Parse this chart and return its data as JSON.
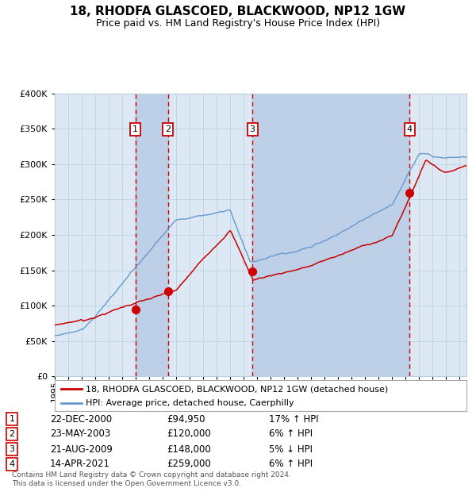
{
  "title": "18, RHODFA GLASCOED, BLACKWOOD, NP12 1GW",
  "subtitle": "Price paid vs. HM Land Registry's House Price Index (HPI)",
  "footer_line1": "Contains HM Land Registry data © Crown copyright and database right 2024.",
  "footer_line2": "This data is licensed under the Open Government Licence v3.0.",
  "legend_red": "18, RHODFA GLASCOED, BLACKWOOD, NP12 1GW (detached house)",
  "legend_blue": "HPI: Average price, detached house, Caerphilly",
  "transactions": [
    {
      "num": 1,
      "date": "22-DEC-2000",
      "price": 94950,
      "pct": "17%",
      "dir": "↑",
      "x_year": 2000.97
    },
    {
      "num": 2,
      "date": "23-MAY-2003",
      "price": 120000,
      "pct": "6%",
      "dir": "↑",
      "x_year": 2003.39
    },
    {
      "num": 3,
      "date": "21-AUG-2009",
      "price": 148000,
      "pct": "5%",
      "dir": "↓",
      "x_year": 2009.64
    },
    {
      "num": 4,
      "date": "14-APR-2021",
      "price": 259000,
      "pct": "6%",
      "dir": "↑",
      "x_year": 2021.29
    }
  ],
  "ylim": [
    0,
    400000
  ],
  "yticks": [
    0,
    50000,
    100000,
    150000,
    200000,
    250000,
    300000,
    350000,
    400000
  ],
  "xlim_start": 1995.0,
  "xlim_end": 2025.5,
  "plot_bg": "#dce9f5",
  "grid_color": "#b8cfe0",
  "red_line_color": "#cc0000",
  "blue_line_color": "#6699cc",
  "highlight_bg": "#bdd0e8",
  "vline_dashed_color": "#aaaaaa",
  "vline_sale_color": "#cc0000"
}
